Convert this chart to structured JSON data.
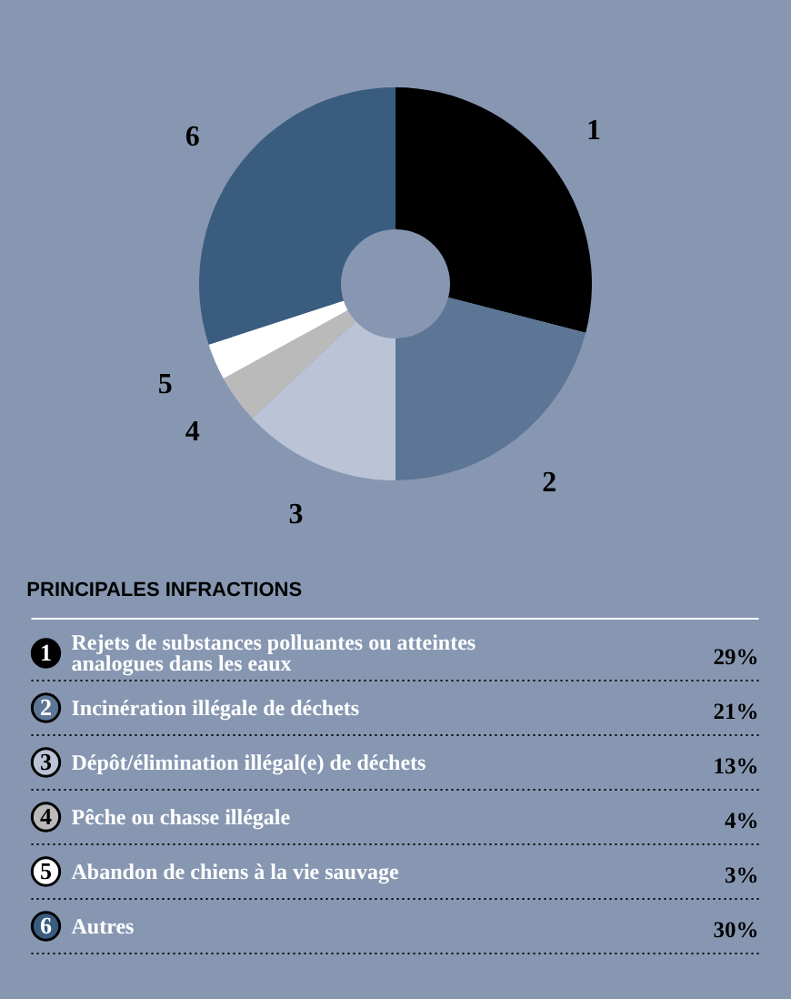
{
  "chart_data": {
    "type": "donut",
    "legend_title": "PRINCIPALES INFRACTIONS",
    "categories": [
      "Rejets de substances polluantes ou atteintes analogues dans les eaux",
      "Incinération illégale de déchets",
      "Dépôt/élimination illégal(e) de déchets",
      "Pêche ou chasse illégale",
      "Abandon de chiens à la vie sauvage",
      "Autres"
    ],
    "values": [
      29,
      21,
      13,
      4,
      3,
      30
    ],
    "value_labels": [
      "29%",
      "21%",
      "13%",
      "4%",
      "3%",
      "30%"
    ],
    "colors": [
      "#000000",
      "#5d7696",
      "#bac4d6",
      "#bababa",
      "#ffffff",
      "#3a5c7e"
    ],
    "legend": "bottom",
    "annotations": [
      {
        "text": "1",
        "x": "Rejets de substances polluantes ou atteintes analogues dans les eaux"
      },
      {
        "text": "2",
        "x": "Incinération illégale de déchets"
      },
      {
        "text": "3",
        "x": "Dépôt/élimination illégal(e) de déchets"
      },
      {
        "text": "4",
        "x": "Pêche ou chasse illégale"
      },
      {
        "text": "5",
        "x": "Abandon de chiens à la vie sauvage"
      },
      {
        "text": "6",
        "x": "Autres"
      }
    ]
  }
}
